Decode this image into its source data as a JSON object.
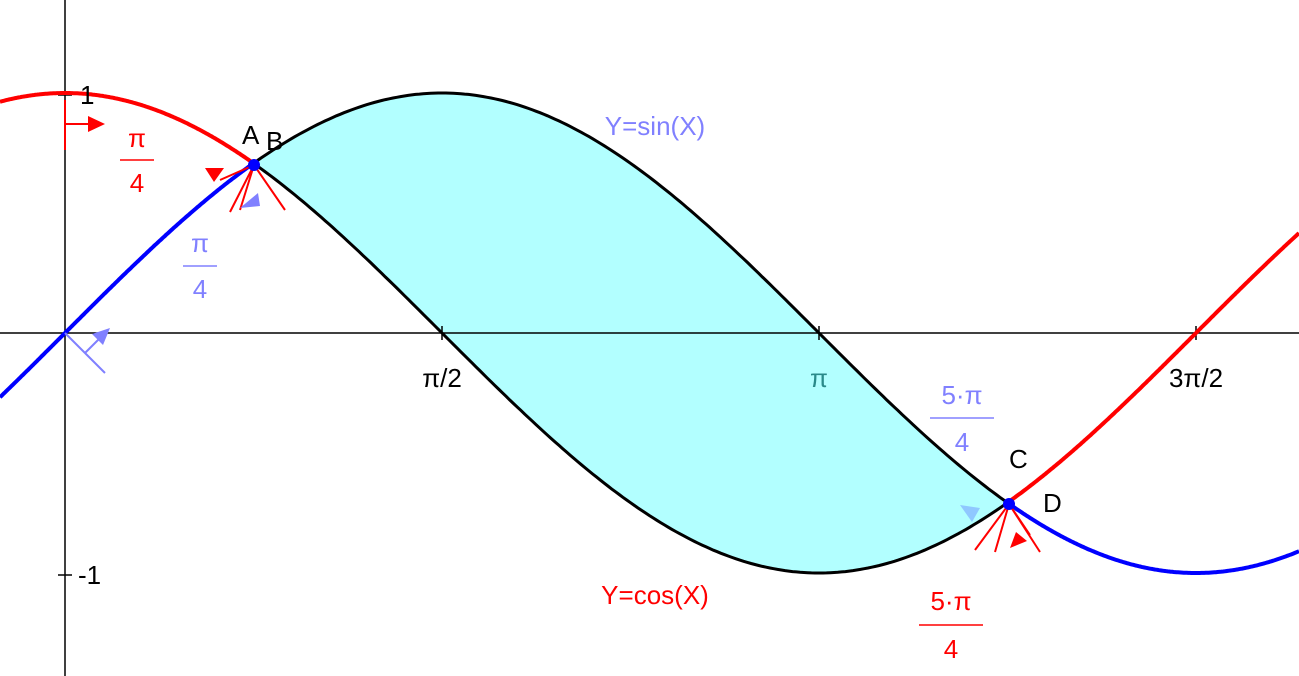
{
  "axes": {
    "y_ticks": [
      "1",
      "-1"
    ],
    "x_ticks": [
      "π/2",
      "π",
      "3π/2"
    ]
  },
  "points": [
    "A",
    "B",
    "C",
    "D"
  ],
  "curves": {
    "sin": "Y=sin(X)",
    "cos": "Y=cos(X)"
  },
  "angles": [
    {
      "numerator": "π",
      "denominator": "4"
    },
    {
      "numerator": "π",
      "denominator": "4"
    },
    {
      "numerator": "5·π",
      "denominator": "4"
    },
    {
      "numerator": "5·π",
      "denominator": "4"
    }
  ]
}
